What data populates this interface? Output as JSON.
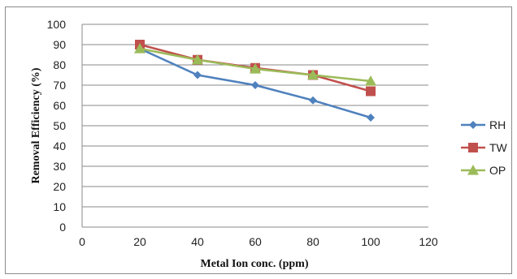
{
  "chart_data": {
    "type": "line",
    "title": "",
    "xlabel": "Metal Ion conc. (ppm)",
    "ylabel": "Removal Efficiency (%)",
    "xlim": [
      0,
      120
    ],
    "ylim": [
      0,
      100
    ],
    "x_ticks": [
      0,
      20,
      40,
      60,
      80,
      100,
      120
    ],
    "y_ticks": [
      0,
      10,
      20,
      30,
      40,
      50,
      60,
      70,
      80,
      90,
      100
    ],
    "grid": "horizontal",
    "legend_position": "right",
    "x": [
      20,
      40,
      60,
      80,
      100
    ],
    "series": [
      {
        "name": "RH",
        "values": [
          88,
          75,
          70,
          62.5,
          54
        ],
        "color": "#4f81bd",
        "marker": "diamond"
      },
      {
        "name": "TW",
        "values": [
          90,
          82.5,
          78.5,
          75,
          67
        ],
        "color": "#c0504d",
        "marker": "square"
      },
      {
        "name": "OP",
        "values": [
          88,
          82.5,
          78,
          75,
          72
        ],
        "color": "#9bbb59",
        "marker": "triangle"
      }
    ]
  }
}
